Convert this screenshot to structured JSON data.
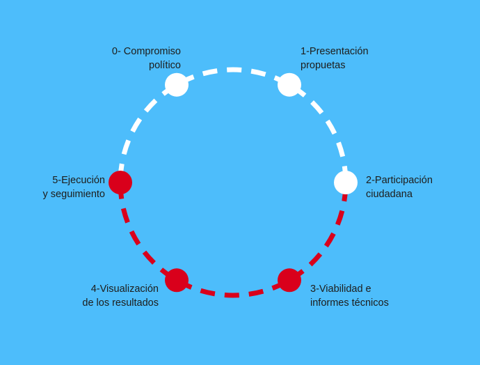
{
  "colors": {
    "background": "#4dbdfb",
    "pending": "#ffffff",
    "done": "#d9001b",
    "text": "#1d1d1b"
  },
  "steps": [
    {
      "line1": "0- Compromiso",
      "line2": "político",
      "state": "pending"
    },
    {
      "line1": "1-Presentación",
      "line2": "propuetas",
      "state": "pending"
    },
    {
      "line1": "2-Participación",
      "line2": "ciudadana",
      "state": "pending"
    },
    {
      "line1": "3-Viabilidad e",
      "line2": "informes técnicos",
      "state": "done"
    },
    {
      "line1": "4-Visualización",
      "line2": "de los resultados",
      "state": "done"
    },
    {
      "line1": "5-Ejecución",
      "line2": "y seguimiento",
      "state": "done"
    }
  ]
}
